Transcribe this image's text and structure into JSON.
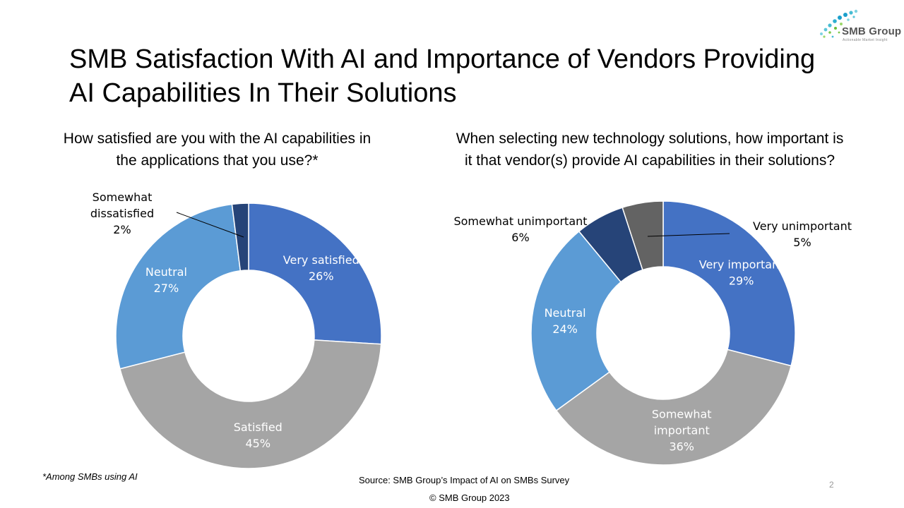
{
  "slide": {
    "title_line1": "SMB Satisfaction With AI and Importance of Vendors Providing",
    "title_line2": "AI Capabilities In Their Solutions",
    "footnote": "*Among SMBs using AI",
    "source": "Source: SMB Group’s Impact of AI on SMBs Survey",
    "copyright": "© SMB Group  2023",
    "page_number": "2"
  },
  "logo": {
    "name": "SMB Group",
    "tagline": "Actionable Market Insight",
    "icon": "dots-swirl-icon"
  },
  "chart_data": [
    {
      "type": "pie",
      "title_line1": "How satisfied are you with the AI capabilities in",
      "title_line2": "the applications that you use?*",
      "slices": [
        {
          "label": "Very satisfied",
          "value": 26,
          "value_label": "26%",
          "color": "#4472C4"
        },
        {
          "label": "Satisfied",
          "value": 45,
          "value_label": "45%",
          "color": "#A5A5A5"
        },
        {
          "label": "Neutral",
          "value": 27,
          "value_label": "27%",
          "color": "#5B9BD5"
        },
        {
          "label_lines": [
            "Somewhat",
            "dissatisfied"
          ],
          "value": 2,
          "value_label": "2%",
          "color": "#264478"
        }
      ]
    },
    {
      "type": "pie",
      "title_line1": "When selecting new technology solutions, how important is",
      "title_line2": "it that vendor(s) provide AI capabilities in their solutions?",
      "slices": [
        {
          "label": "Very important",
          "value": 29,
          "value_label": "29%",
          "color": "#4472C4"
        },
        {
          "label_lines": [
            "Somewhat",
            "important"
          ],
          "value": 36,
          "value_label": "36%",
          "color": "#A5A5A5"
        },
        {
          "label": "Neutral",
          "value": 24,
          "value_label": "24%",
          "color": "#5B9BD5"
        },
        {
          "label": "Somewhat unimportant",
          "value": 6,
          "value_label": "6%",
          "color": "#264478"
        },
        {
          "label": "Very unimportant",
          "value": 5,
          "value_label": "5%",
          "color": "#636363"
        }
      ]
    }
  ]
}
